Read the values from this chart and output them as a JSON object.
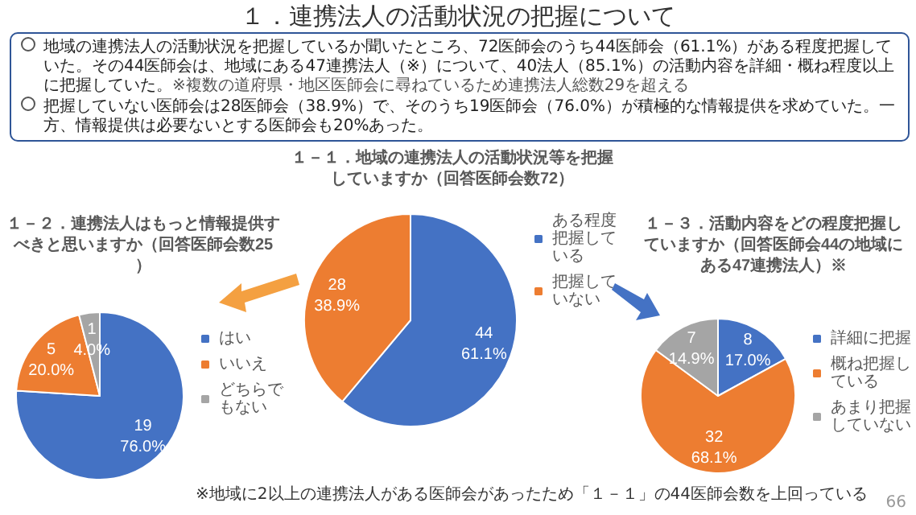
{
  "chart_data": [
    {
      "type": "other",
      "title": "１．連携法人の活動状況の把握について",
      "annotations": [
        "地域の連携法人の活動状況を把握しているか聞いたところ、72医師会のうち44医師会（61.1%）がある程度把握していた。その44医師会は、地域にある47連携法人（※）について、40法人（85.1%）の活動内容を詳細・概ね程度以上に把握していた。",
        "※複数の道府県・地区医師会に尋ねているため連携法人総数29を超える",
        "把握していない医師会は28医師会（38.9%）で、そのうち19医師会（76.0%）が積極的な情報提供を求めていた。一方、情報提供は必要ないとする医師会も20%あった。"
      ]
    },
    {
      "type": "pie",
      "title": "１－１．地域の連携法人の活動状況等を把握していますか（回答医師会数72）",
      "categories": [
        "ある程度把握している",
        "把握していない"
      ],
      "values": [
        44,
        28
      ],
      "colors": [
        "#4472c4",
        "#ed7d31"
      ],
      "value_labels": [
        "44\n61.1%",
        "28\n38.9%"
      ],
      "legend": "top right"
    },
    {
      "type": "pie",
      "title": "１－２．連携法人はもっと情報提供すべきと思いますか（回答医師会数25）",
      "categories": [
        "はい",
        "いいえ",
        "どちらでもない"
      ],
      "values": [
        19,
        5,
        1
      ],
      "colors": [
        "#4472c4",
        "#ed7d31",
        "#a5a5a5"
      ],
      "value_labels": [
        "19\n76.0%",
        "5\n20.0%",
        "1\n4.0%"
      ],
      "legend": "right"
    },
    {
      "type": "pie",
      "title": "１－３．活動内容をどの程度把握していますか（回答医師会44の地域にある47連携法人）※",
      "categories": [
        "詳細に把握",
        "概ね把握している",
        "あまり把握していない"
      ],
      "values": [
        8,
        32,
        7
      ],
      "colors": [
        "#4472c4",
        "#ed7d31",
        "#a5a5a5"
      ],
      "value_labels": [
        "8\n17.0%",
        "32\n68.1%",
        "7\n14.9%"
      ],
      "legend": "right",
      "annotations": [
        "※地域に2以上の連携法人がある医師会があったため「１－１」の44医師会数を上回っている",
        "66"
      ]
    }
  ]
}
